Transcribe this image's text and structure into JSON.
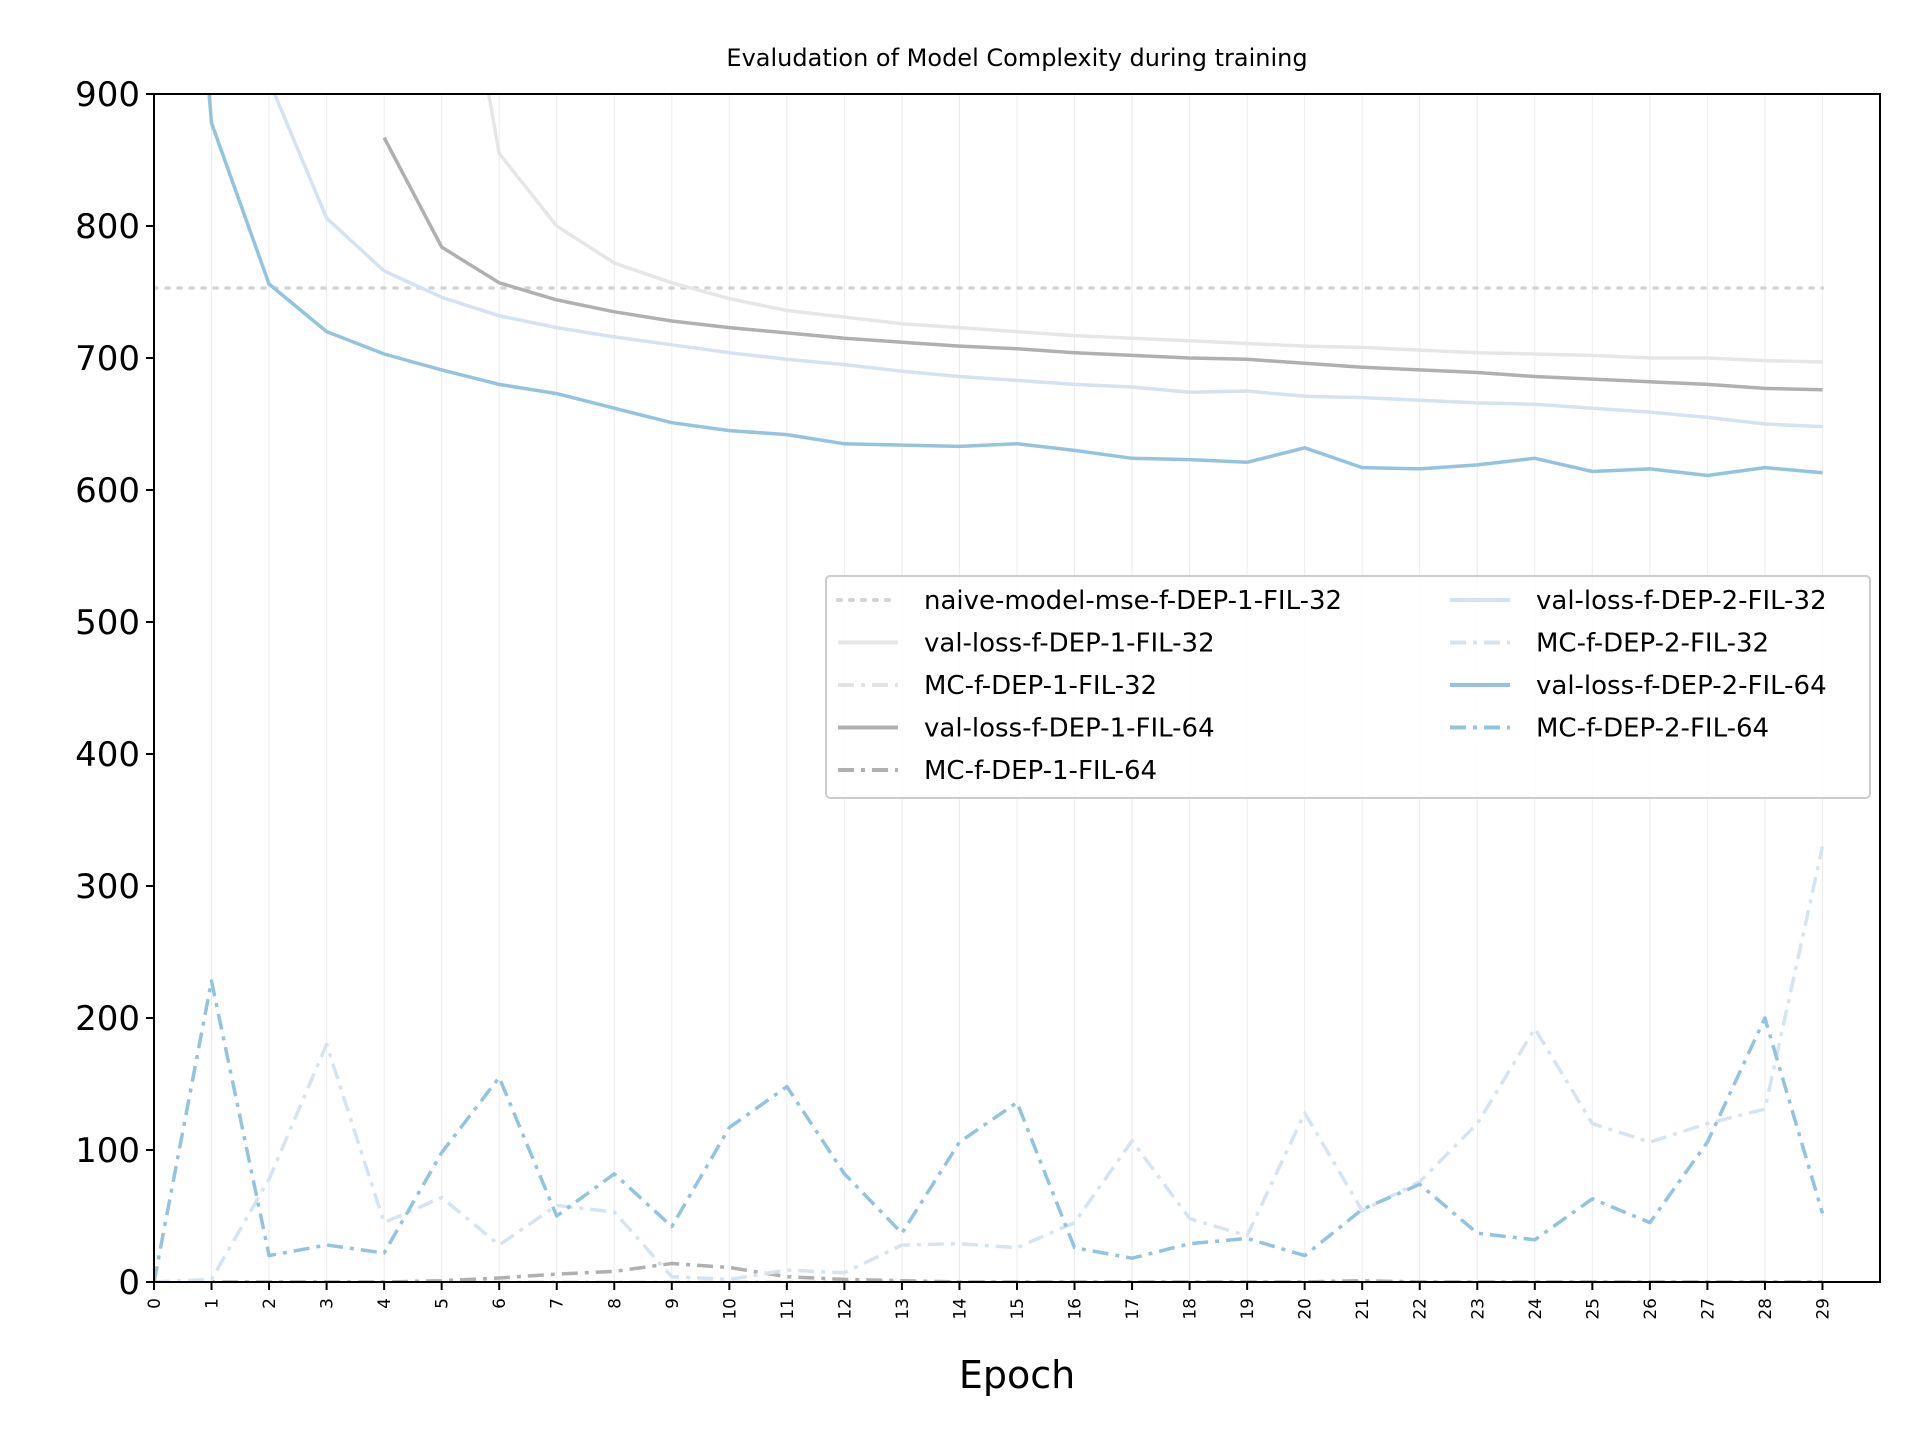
{
  "chart_data": {
    "type": "line",
    "title": "Evaludation of Model Complexity during training",
    "xlabel": "Epoch",
    "ylabel": "",
    "xlim": [
      0,
      30
    ],
    "ylim": [
      0,
      900
    ],
    "x_ticks": [
      "0",
      "1",
      "2",
      "3",
      "4",
      "5",
      "6",
      "7",
      "8",
      "9",
      "10",
      "11",
      "12",
      "13",
      "14",
      "15",
      "16",
      "17",
      "18",
      "19",
      "20",
      "21",
      "22",
      "23",
      "24",
      "25",
      "26",
      "27",
      "28",
      "29"
    ],
    "y_ticks": [
      "0",
      "100",
      "200",
      "300",
      "400",
      "500",
      "600",
      "700",
      "800",
      "900"
    ],
    "grid": "vertical-only",
    "legend_position": "center-right",
    "series": [
      {
        "name": "naive-model-mse-f-DEP-1-FIL-32",
        "color": "#d4d4d4",
        "style": "dotted",
        "x": [
          0,
          29
        ],
        "values": [
          753,
          753
        ]
      },
      {
        "name": "val-loss-f-DEP-1-FIL-32",
        "color": "#e6e6e6",
        "style": "solid",
        "x": [
          5,
          6,
          7,
          8,
          9,
          10,
          11,
          12,
          13,
          14,
          15,
          16,
          17,
          18,
          19,
          20,
          21,
          22,
          23,
          24,
          25,
          26,
          27,
          28,
          29
        ],
        "values": [
          1100,
          855,
          800,
          772,
          757,
          745,
          736,
          731,
          726,
          723,
          720,
          717,
          715,
          713,
          711,
          709,
          708,
          706,
          704,
          703,
          702,
          700,
          700,
          698,
          697
        ]
      },
      {
        "name": "MC-f-DEP-1-FIL-32",
        "color": "#e3e3e3",
        "style": "dashdot",
        "x": [
          0,
          1,
          2,
          3,
          4,
          5,
          6,
          7,
          8,
          9,
          10,
          11,
          12,
          13,
          14,
          15,
          16,
          17,
          18,
          19,
          20,
          21,
          22,
          23,
          24,
          25,
          26,
          27,
          28,
          29
        ],
        "values": [
          0,
          0,
          0,
          0,
          0,
          0,
          0,
          0,
          0,
          0,
          0,
          0,
          0,
          0,
          0,
          0,
          0,
          0,
          0,
          0,
          0,
          0,
          0,
          0,
          0,
          0,
          0,
          0,
          0,
          0
        ]
      },
      {
        "name": "val-loss-f-DEP-1-FIL-64",
        "color": "#b0b0b0",
        "style": "solid",
        "x": [
          4,
          5,
          6,
          7,
          8,
          9,
          10,
          11,
          12,
          13,
          14,
          15,
          16,
          17,
          18,
          19,
          20,
          21,
          22,
          23,
          24,
          25,
          26,
          27,
          28,
          29
        ],
        "values": [
          867,
          784,
          757,
          744,
          735,
          728,
          723,
          719,
          715,
          712,
          709,
          707,
          704,
          702,
          700,
          699,
          696,
          693,
          691,
          689,
          686,
          684,
          682,
          680,
          677,
          676
        ]
      },
      {
        "name": "MC-f-DEP-1-FIL-64",
        "color": "#b0b0b0",
        "style": "dashdot",
        "x": [
          0,
          1,
          2,
          3,
          4,
          5,
          6,
          7,
          8,
          9,
          10,
          11,
          12,
          13,
          14,
          15,
          16,
          17,
          18,
          19,
          20,
          21,
          22,
          23,
          24,
          25,
          26,
          27,
          28,
          29
        ],
        "values": [
          0,
          0,
          0,
          0,
          0,
          1,
          3,
          6,
          8,
          14,
          11,
          4,
          2,
          1,
          0,
          0,
          0,
          0,
          0,
          0,
          0,
          1,
          0,
          0,
          0,
          0,
          0,
          0,
          0,
          0
        ]
      },
      {
        "name": "val-loss-f-DEP-2-FIL-32",
        "color": "#d4e3f1",
        "style": "solid",
        "x": [
          2,
          3,
          4,
          5,
          6,
          7,
          8,
          9,
          10,
          11,
          12,
          13,
          14,
          15,
          16,
          17,
          18,
          19,
          20,
          21,
          22,
          23,
          24,
          25,
          26,
          27,
          28,
          29
        ],
        "values": [
          910,
          806,
          766,
          746,
          732,
          723,
          716,
          710,
          704,
          699,
          695,
          690,
          686,
          683,
          680,
          678,
          674,
          675,
          671,
          670,
          668,
          666,
          665,
          662,
          659,
          655,
          650,
          648
        ]
      },
      {
        "name": "MC-f-DEP-2-FIL-32",
        "color": "#d6e4f2",
        "style": "dashdot",
        "x": [
          0,
          1,
          2,
          3,
          4,
          5,
          6,
          7,
          8,
          9,
          10,
          11,
          12,
          13,
          14,
          15,
          16,
          17,
          18,
          19,
          20,
          21,
          22,
          23,
          24,
          25,
          26,
          27,
          28,
          29
        ],
        "values": [
          0,
          2,
          78,
          180,
          45,
          64,
          28,
          58,
          53,
          4,
          2,
          9,
          7,
          28,
          29,
          26,
          45,
          107,
          48,
          35,
          128,
          54,
          76,
          120,
          192,
          120,
          106,
          120,
          131,
          330
        ]
      },
      {
        "name": "val-loss-f-DEP-2-FIL-64",
        "color": "#94c3df",
        "style": "solid",
        "x": [
          0,
          1,
          2,
          3,
          4,
          5,
          6,
          7,
          8,
          9,
          10,
          11,
          12,
          13,
          14,
          15,
          16,
          17,
          18,
          19,
          20,
          21,
          22,
          23,
          24,
          25,
          26,
          27,
          28,
          29
        ],
        "values": [
          1400,
          878,
          756,
          720,
          703,
          691,
          680,
          673,
          662,
          651,
          645,
          642,
          635,
          634,
          633,
          635,
          630,
          624,
          623,
          621,
          632,
          617,
          616,
          619,
          624,
          614,
          616,
          611,
          617,
          613
        ]
      },
      {
        "name": "MC-f-DEP-2-FIL-64",
        "color": "#94c3df",
        "style": "dashdot",
        "x": [
          0,
          1,
          2,
          3,
          4,
          5,
          6,
          7,
          8,
          9,
          10,
          11,
          12,
          13,
          14,
          15,
          16,
          17,
          18,
          19,
          20,
          21,
          22,
          23,
          24,
          25,
          26,
          27,
          28,
          29
        ],
        "values": [
          0,
          228,
          20,
          28,
          22,
          98,
          155,
          50,
          82,
          42,
          117,
          148,
          82,
          37,
          106,
          136,
          26,
          18,
          29,
          33,
          20,
          55,
          74,
          37,
          32,
          63,
          45,
          106,
          200,
          52
        ]
      }
    ]
  }
}
